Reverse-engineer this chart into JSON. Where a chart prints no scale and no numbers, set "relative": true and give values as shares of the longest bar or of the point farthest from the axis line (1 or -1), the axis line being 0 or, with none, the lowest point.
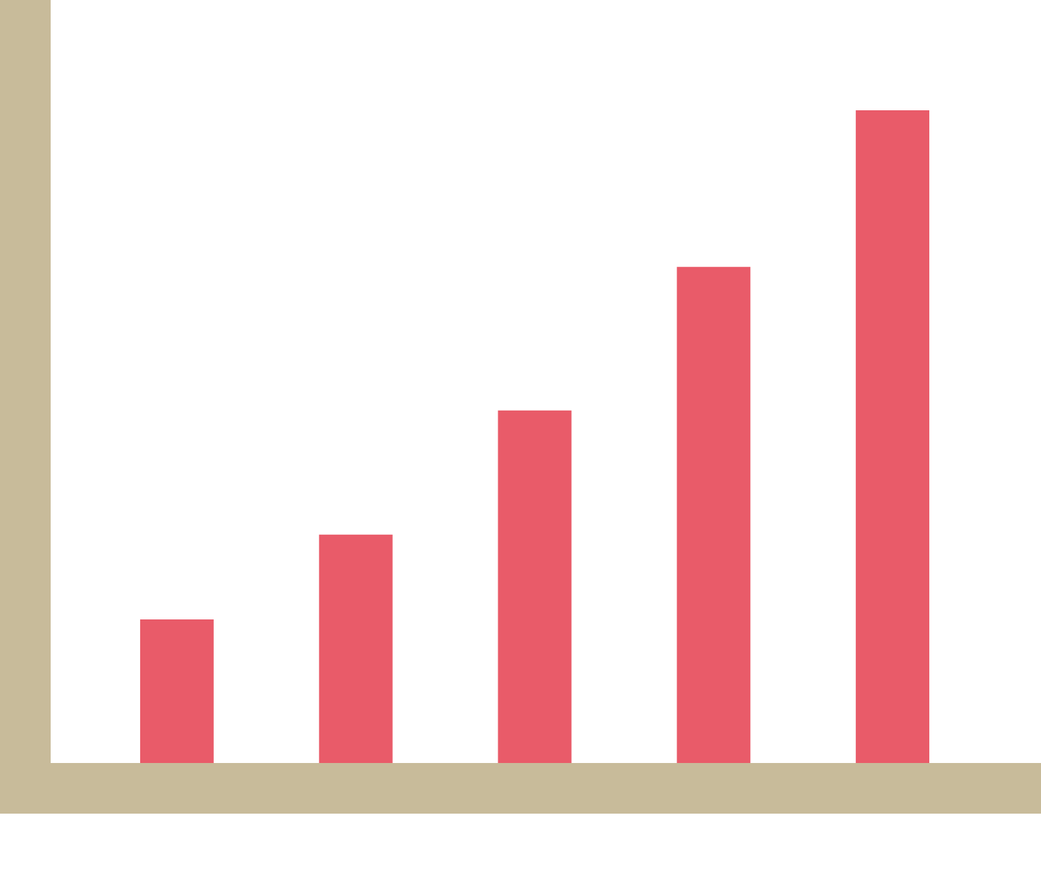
{
  "chart_data": {
    "type": "bar",
    "relative": true,
    "categories": [
      null,
      null,
      null,
      null,
      null
    ],
    "values": [
      0.22,
      0.35,
      0.54,
      0.76,
      1
    ],
    "color": "#e95b69"
  }
}
